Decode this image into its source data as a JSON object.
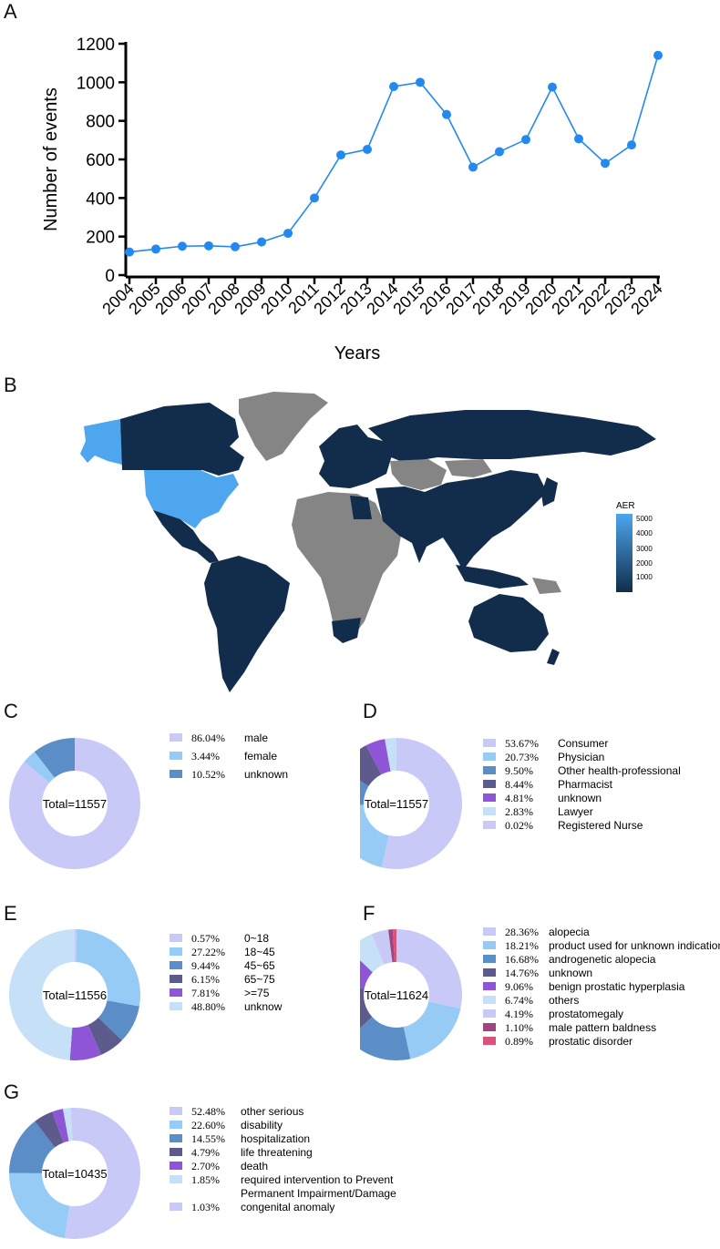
{
  "panels": {
    "a": "A",
    "b": "B",
    "c": "C",
    "d": "D",
    "e": "E",
    "f": "F",
    "g": "G"
  },
  "chart_data": [
    {
      "type": "line",
      "panel": "A",
      "x": [
        "2004",
        "2005",
        "2006",
        "2007",
        "2008",
        "2009",
        "2010",
        "2011",
        "2012",
        "2013",
        "2014",
        "2015",
        "2016",
        "2017",
        "2018",
        "2019",
        "2020",
        "2021",
        "2022",
        "2023",
        "2024"
      ],
      "values": [
        120,
        135,
        150,
        152,
        147,
        172,
        217,
        400,
        623,
        652,
        978,
        1000,
        833,
        560,
        640,
        703,
        975,
        707,
        580,
        675,
        1140
      ],
      "xlabel": "Years",
      "ylabel": "Number of events",
      "ylim": [
        0,
        1200
      ],
      "yticks": [
        "0",
        "200",
        "400",
        "600",
        "800",
        "1000",
        "1200"
      ],
      "color": "#2389f0",
      "grid": false
    },
    {
      "type": "map",
      "panel": "B",
      "legend_title": "AER",
      "legend_ticks": [
        "5000",
        "4000",
        "3000",
        "2000",
        "1000"
      ],
      "colors": {
        "high": "#4ea6ee",
        "low": "#112d4b",
        "no_data": "#858585"
      },
      "highlighted_regions_high": [
        "United States"
      ]
    },
    {
      "type": "pie",
      "panel": "C",
      "center_label": "Total=11557",
      "slices": [
        {
          "pct": "86.04%",
          "value": 86.04,
          "label": "male",
          "color": "#c8c9f6"
        },
        {
          "pct": "3.44%",
          "value": 3.44,
          "label": "female",
          "color": "#95cbf5"
        },
        {
          "pct": "10.52%",
          "value": 10.52,
          "label": "unknown",
          "color": "#5b8ec6"
        }
      ]
    },
    {
      "type": "pie",
      "panel": "D",
      "center_label": "Total=11557",
      "slices": [
        {
          "pct": "53.67%",
          "value": 53.67,
          "label": "Consumer",
          "color": "#c8c9f6"
        },
        {
          "pct": "20.73%",
          "value": 20.73,
          "label": "Physician",
          "color": "#95cbf5"
        },
        {
          "pct": "9.50%",
          "value": 9.5,
          "label": "Other health-professional",
          "color": "#5b8ec6"
        },
        {
          "pct": "8.44%",
          "value": 8.44,
          "label": "Pharmacist",
          "color": "#5d5a8c"
        },
        {
          "pct": "4.81%",
          "value": 4.81,
          "label": "unknown",
          "color": "#8e55d6"
        },
        {
          "pct": "2.83%",
          "value": 2.83,
          "label": "Lawyer",
          "color": "#c6e1f7"
        },
        {
          "pct": "0.02%",
          "value": 0.02,
          "label": "Registered Nurse",
          "color": "#c8c9f6"
        }
      ]
    },
    {
      "type": "pie",
      "panel": "E",
      "center_label": "Total=11556",
      "slices": [
        {
          "pct": "0.57%",
          "value": 0.57,
          "label": "0~18",
          "color": "#c8c9f6"
        },
        {
          "pct": "27.22%",
          "value": 27.22,
          "label": "18~45",
          "color": "#95cbf5"
        },
        {
          "pct": "9.44%",
          "value": 9.44,
          "label": "45~65",
          "color": "#5b8ec6"
        },
        {
          "pct": "6.15%",
          "value": 6.15,
          "label": "65~75",
          "color": "#5d5a8c"
        },
        {
          "pct": "7.81%",
          "value": 7.81,
          "label": ">=75",
          "color": "#8e55d6"
        },
        {
          "pct": "48.80%",
          "value": 48.8,
          "label": "unknow",
          "color": "#c6e1f7"
        }
      ]
    },
    {
      "type": "pie",
      "panel": "F",
      "center_label": "Total=11624",
      "slices": [
        {
          "pct": "28.36%",
          "value": 28.36,
          "label": "alopecia",
          "color": "#c8c9f6"
        },
        {
          "pct": "18.21%",
          "value": 18.21,
          "label": "product used for unknown indication",
          "color": "#95cbf5"
        },
        {
          "pct": "16.68%",
          "value": 16.68,
          "label": "androgenetic alopecia",
          "color": "#5b8ec6"
        },
        {
          "pct": "14.76%",
          "value": 14.76,
          "label": "unknown",
          "color": "#5d5a8c"
        },
        {
          "pct": "9.06%",
          "value": 9.06,
          "label": "benign prostatic hyperplasia",
          "color": "#8e55d6"
        },
        {
          "pct": "6.74%",
          "value": 6.74,
          "label": "others",
          "color": "#c6e1f7"
        },
        {
          "pct": "4.19%",
          "value": 4.19,
          "label": "prostatomegaly",
          "color": "#c8c9f6"
        },
        {
          "pct": "1.10%",
          "value": 1.1,
          "label": "male pattern baldness",
          "color": "#a0457e"
        },
        {
          "pct": "0.89%",
          "value": 0.89,
          "label": "prostatic disorder",
          "color": "#d9537a"
        }
      ]
    },
    {
      "type": "pie",
      "panel": "G",
      "center_label": "Total=10435",
      "slices": [
        {
          "pct": "52.48%",
          "value": 52.48,
          "label": "other serious",
          "color": "#c8c9f6"
        },
        {
          "pct": "22.60%",
          "value": 22.6,
          "label": "disability",
          "color": "#95cbf5"
        },
        {
          "pct": "14.55%",
          "value": 14.55,
          "label": "hospitalization",
          "color": "#5b8ec6"
        },
        {
          "pct": "4.79%",
          "value": 4.79,
          "label": "life threatening",
          "color": "#5d5a8c"
        },
        {
          "pct": "2.70%",
          "value": 2.7,
          "label": "death",
          "color": "#8e55d6"
        },
        {
          "pct": "1.85%",
          "value": 1.85,
          "label": "required intervention to Prevent",
          "label2": "Permanent Impairment/Damage",
          "color": "#c6e1f7"
        },
        {
          "pct": "1.03%",
          "value": 1.03,
          "label": "congenital anomaly",
          "color": "#c8c9f6"
        }
      ]
    }
  ]
}
